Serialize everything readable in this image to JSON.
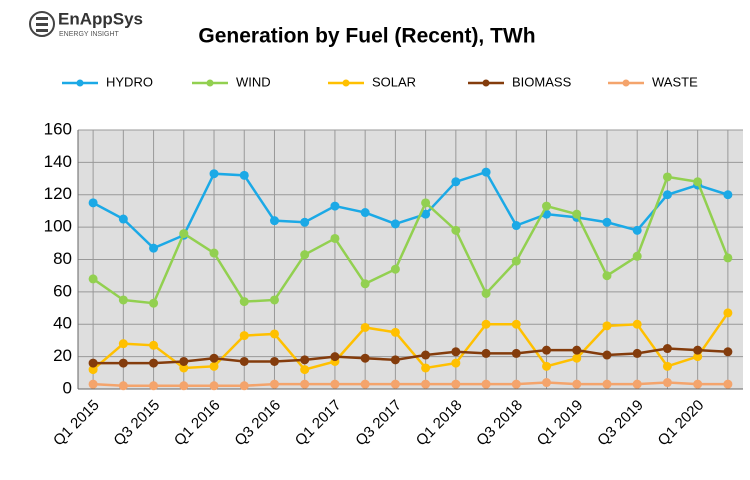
{
  "logo": {
    "name": "EnAppSys",
    "tagline": "ENERGY INSIGHT"
  },
  "chart_data": {
    "type": "line",
    "title": "Generation by Fuel (Recent), TWh",
    "categories": [
      "Q1 2015",
      null,
      "Q3 2015",
      null,
      "Q1 2016",
      null,
      "Q3 2016",
      null,
      "Q1 2017",
      null,
      "Q3 2017",
      null,
      "Q1 2018",
      null,
      "Q3 2018",
      null,
      "Q1 2019",
      null,
      "Q3 2019",
      null,
      "Q1 2020",
      null
    ],
    "series": [
      {
        "name": "HYDRO",
        "color": "#1ba9e6",
        "values": [
          115,
          105,
          87,
          95,
          133,
          132,
          104,
          103,
          113,
          109,
          102,
          108,
          128,
          134,
          101,
          108,
          106,
          103,
          98,
          120,
          126,
          120
        ]
      },
      {
        "name": "WIND",
        "color": "#92d050",
        "values": [
          68,
          55,
          53,
          96,
          84,
          54,
          55,
          83,
          93,
          65,
          74,
          115,
          98,
          59,
          79,
          113,
          108,
          70,
          82,
          131,
          128,
          81
        ]
      },
      {
        "name": "SOLAR",
        "color": "#ffc000",
        "values": [
          12,
          28,
          27,
          13,
          14,
          33,
          34,
          12,
          17,
          38,
          35,
          13,
          16,
          40,
          40,
          14,
          19,
          39,
          40,
          14,
          20,
          47
        ]
      },
      {
        "name": "BIOMASS",
        "color": "#843c0c",
        "values": [
          16,
          16,
          16,
          17,
          19,
          17,
          17,
          18,
          20,
          19,
          18,
          21,
          23,
          22,
          22,
          24,
          24,
          21,
          22,
          25,
          24,
          23
        ]
      },
      {
        "name": "WASTE",
        "color": "#f4a46c",
        "values": [
          3,
          2,
          2,
          2,
          2,
          2,
          3,
          3,
          3,
          3,
          3,
          3,
          3,
          3,
          3,
          4,
          3,
          3,
          3,
          4,
          3,
          3
        ]
      }
    ],
    "ylim": [
      0,
      160
    ],
    "yticks": [
      0,
      20,
      40,
      60,
      80,
      100,
      120,
      140,
      160
    ],
    "grid": true,
    "legend": "top"
  }
}
